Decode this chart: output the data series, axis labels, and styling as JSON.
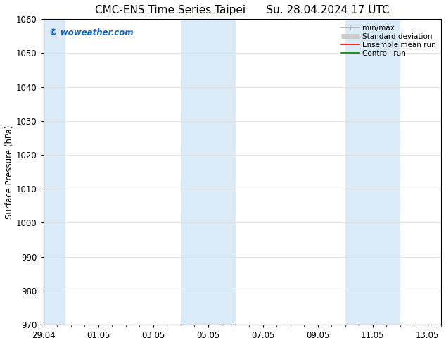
{
  "title_left": "CMC-ENS Time Series Taipei",
  "title_right": "Su. 28.04.2024 17 UTC",
  "ylabel": "Surface Pressure (hPa)",
  "ylim": [
    970,
    1060
  ],
  "yticks": [
    970,
    980,
    990,
    1000,
    1010,
    1020,
    1030,
    1040,
    1050,
    1060
  ],
  "xlim_start": 0.0,
  "xlim_end": 14.5,
  "xtick_labels": [
    "29.04",
    "01.05",
    "03.05",
    "05.05",
    "07.05",
    "09.05",
    "11.05",
    "13.05"
  ],
  "xtick_positions": [
    0,
    2,
    4,
    6,
    8,
    10,
    12,
    14
  ],
  "shaded_bands": [
    {
      "x_start": 0.0,
      "x_end": 0.8,
      "color": "#daeaf7"
    },
    {
      "x_start": 5.0,
      "x_end": 7.0,
      "color": "#daeaf7"
    },
    {
      "x_start": 11.0,
      "x_end": 13.0,
      "color": "#daeaf7"
    }
  ],
  "watermark_text": "© woweather.com",
  "watermark_color": "#1565C0",
  "legend_entries": [
    {
      "label": "min/max",
      "color": "#aaaaaa",
      "lw": 1.2,
      "linestyle": "-"
    },
    {
      "label": "Standard deviation",
      "color": "#cccccc",
      "lw": 5,
      "linestyle": "-"
    },
    {
      "label": "Ensemble mean run",
      "color": "red",
      "lw": 1.2,
      "linestyle": "-"
    },
    {
      "label": "Controll run",
      "color": "green",
      "lw": 1.2,
      "linestyle": "-"
    }
  ],
  "bg_color": "#ffffff",
  "grid_color": "#dddddd",
  "title_fontsize": 11,
  "label_fontsize": 8.5,
  "tick_fontsize": 8.5,
  "legend_fontsize": 7.5
}
